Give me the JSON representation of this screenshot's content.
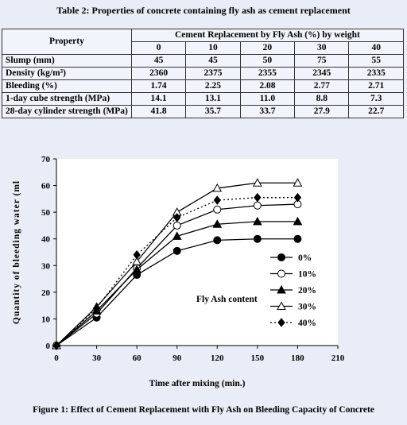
{
  "table": {
    "title": "Table 2: Properties of concrete containing fly ash as cement replacement",
    "property_header": "Property",
    "group_header": "Cement Replacement by Fly Ash (%) by weight",
    "levels": [
      "0",
      "10",
      "20",
      "30",
      "40"
    ],
    "rows": [
      {
        "label": "Slump (mm)",
        "values": [
          "45",
          "45",
          "50",
          "75",
          "55"
        ]
      },
      {
        "label": "Density (kg/m³)",
        "values": [
          "2360",
          "2375",
          "2355",
          "2345",
          "2335"
        ]
      },
      {
        "label": "Bleeding (%)",
        "values": [
          "1.74",
          "2.25",
          "2.08",
          "2.77",
          "2.71"
        ]
      },
      {
        "label": "1-day cube strength (MPa)",
        "values": [
          "14.1",
          "13.1",
          "11.0",
          "8.8",
          "7.3"
        ]
      },
      {
        "label": "28-day cylinder strength (MPa)",
        "values": [
          "41.8",
          "35.7",
          "33.7",
          "27.9",
          "22.7"
        ]
      }
    ]
  },
  "chart_data": {
    "type": "line",
    "xlabel": "Time after mixing (min.)",
    "ylabel": "Quantity of bleeding water (ml",
    "xlim": [
      0,
      210
    ],
    "ylim": [
      0,
      70
    ],
    "xticks": [
      0,
      30,
      60,
      90,
      120,
      150,
      180,
      210
    ],
    "yticks": [
      0,
      10,
      20,
      30,
      40,
      50,
      60,
      70
    ],
    "grid": false,
    "legend_title": "Fly Ash content",
    "legend_position": "right",
    "x": [
      0,
      30,
      60,
      90,
      120,
      150,
      180
    ],
    "series": [
      {
        "name": "0%",
        "marker": "filled-circle",
        "style": "solid",
        "values": [
          0,
          10.5,
          26.5,
          35.5,
          39.5,
          40,
          40
        ]
      },
      {
        "name": "10%",
        "marker": "open-circle",
        "style": "solid",
        "values": [
          0,
          12,
          29,
          45,
          51,
          52.5,
          53
        ]
      },
      {
        "name": "20%",
        "marker": "filled-triangle",
        "style": "solid",
        "values": [
          0,
          13,
          28.5,
          41,
          45.5,
          46.5,
          46.5
        ]
      },
      {
        "name": "30%",
        "marker": "open-triangle",
        "style": "solid",
        "values": [
          0,
          14.5,
          31.5,
          50,
          59,
          61,
          61
        ]
      },
      {
        "name": "40%",
        "marker": "filled-diamond",
        "style": "dotted",
        "values": [
          0,
          14,
          34,
          48,
          54.5,
          55.5,
          55.5
        ]
      }
    ]
  },
  "figure_caption": "Figure 1: Effect of Cement Replacement with Fly Ash on Bleeding Capacity of Concrete"
}
